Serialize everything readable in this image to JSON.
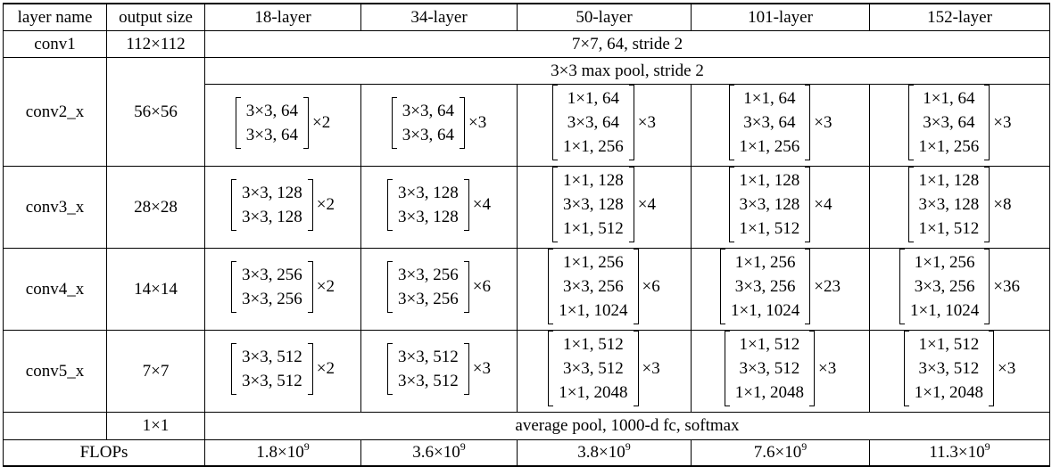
{
  "headers": [
    "layer name",
    "output size",
    "18-layer",
    "34-layer",
    "50-layer",
    "101-layer",
    "152-layer"
  ],
  "conv1": {
    "name": "conv1",
    "size": "112×112",
    "spec": "7×7, 64, stride 2"
  },
  "pool": {
    "spec": "3×3 max pool, stride 2"
  },
  "blocks": [
    {
      "name": "conv2_x",
      "size": "56×56",
      "cells": [
        {
          "lines": [
            "3×3, 64",
            "3×3, 64"
          ],
          "times": "×2"
        },
        {
          "lines": [
            "3×3, 64",
            "3×3, 64"
          ],
          "times": "×3"
        },
        {
          "lines": [
            "1×1, 64",
            "3×3, 64",
            "1×1, 256"
          ],
          "times": "×3"
        },
        {
          "lines": [
            "1×1, 64",
            "3×3, 64",
            "1×1, 256"
          ],
          "times": "×3"
        },
        {
          "lines": [
            "1×1, 64",
            "3×3, 64",
            "1×1, 256"
          ],
          "times": "×3"
        }
      ]
    },
    {
      "name": "conv3_x",
      "size": "28×28",
      "cells": [
        {
          "lines": [
            "3×3, 128",
            "3×3, 128"
          ],
          "times": "×2"
        },
        {
          "lines": [
            "3×3, 128",
            "3×3, 128"
          ],
          "times": "×4"
        },
        {
          "lines": [
            "1×1, 128",
            "3×3, 128",
            "1×1, 512"
          ],
          "times": "×4"
        },
        {
          "lines": [
            "1×1, 128",
            "3×3, 128",
            "1×1, 512"
          ],
          "times": "×4"
        },
        {
          "lines": [
            "1×1, 128",
            "3×3, 128",
            "1×1, 512"
          ],
          "times": "×8"
        }
      ]
    },
    {
      "name": "conv4_x",
      "size": "14×14",
      "cells": [
        {
          "lines": [
            "3×3, 256",
            "3×3, 256"
          ],
          "times": "×2"
        },
        {
          "lines": [
            "3×3, 256",
            "3×3, 256"
          ],
          "times": "×6"
        },
        {
          "lines": [
            "1×1, 256",
            "3×3, 256",
            "1×1, 1024"
          ],
          "times": "×6"
        },
        {
          "lines": [
            "1×1, 256",
            "3×3, 256",
            "1×1, 1024"
          ],
          "times": "×23"
        },
        {
          "lines": [
            "1×1, 256",
            "3×3, 256",
            "1×1, 1024"
          ],
          "times": "×36"
        }
      ]
    },
    {
      "name": "conv5_x",
      "size": "7×7",
      "cells": [
        {
          "lines": [
            "3×3, 512",
            "3×3, 512"
          ],
          "times": "×2"
        },
        {
          "lines": [
            "3×3, 512",
            "3×3, 512"
          ],
          "times": "×3"
        },
        {
          "lines": [
            "1×1, 512",
            "3×3, 512",
            "1×1, 2048"
          ],
          "times": "×3"
        },
        {
          "lines": [
            "1×1, 512",
            "3×3, 512",
            "1×1, 2048"
          ],
          "times": "×3"
        },
        {
          "lines": [
            "1×1, 512",
            "3×3, 512",
            "1×1, 2048"
          ],
          "times": "×3"
        }
      ]
    }
  ],
  "final": {
    "size": "1×1",
    "spec": "average pool, 1000-d fc, softmax"
  },
  "flops": {
    "label": "FLOPs",
    "values": [
      {
        "mant": "1.8×10",
        "exp": "9"
      },
      {
        "mant": "3.6×10",
        "exp": "9"
      },
      {
        "mant": "3.8×10",
        "exp": "9"
      },
      {
        "mant": "7.6×10",
        "exp": "9"
      },
      {
        "mant": "11.3×10",
        "exp": "9"
      }
    ]
  }
}
